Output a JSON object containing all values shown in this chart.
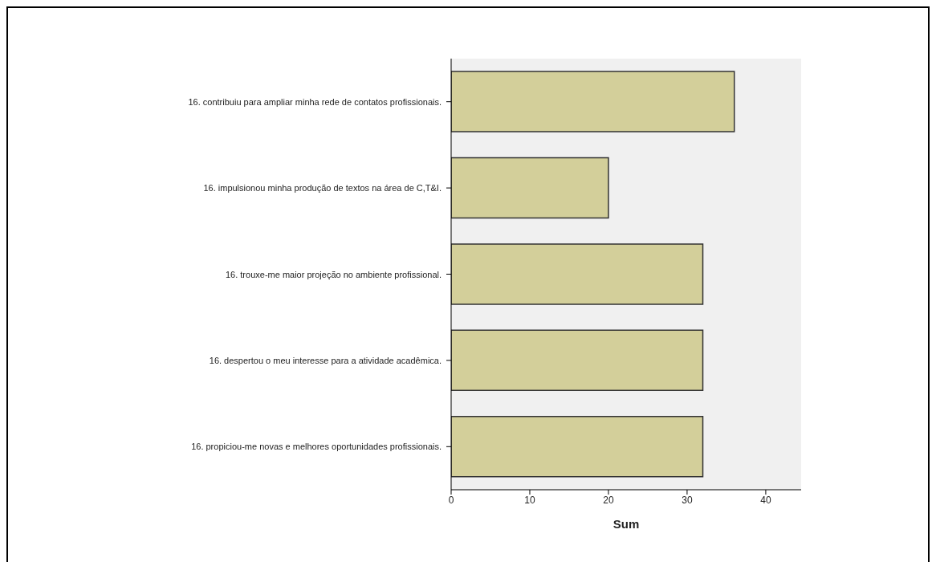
{
  "chart_data": {
    "type": "bar",
    "orientation": "horizontal",
    "xlabel": "Sum",
    "categories": [
      "16. contribuiu para ampliar minha rede de contatos profissionais.",
      "16. impulsionou minha produção de textos na área de C,T&I.",
      "16. trouxe-me maior projeção no ambiente profissional.",
      "16. despertou o meu interesse para a atividade acadêmica.",
      "16. propiciou-me novas e melhores oportunidades profissionais."
    ],
    "values": [
      36,
      20,
      32,
      32,
      32
    ],
    "color": "#d3cf9a",
    "xlim": [
      0,
      44.5
    ],
    "xticks": [
      0,
      10,
      20,
      30,
      40
    ]
  }
}
